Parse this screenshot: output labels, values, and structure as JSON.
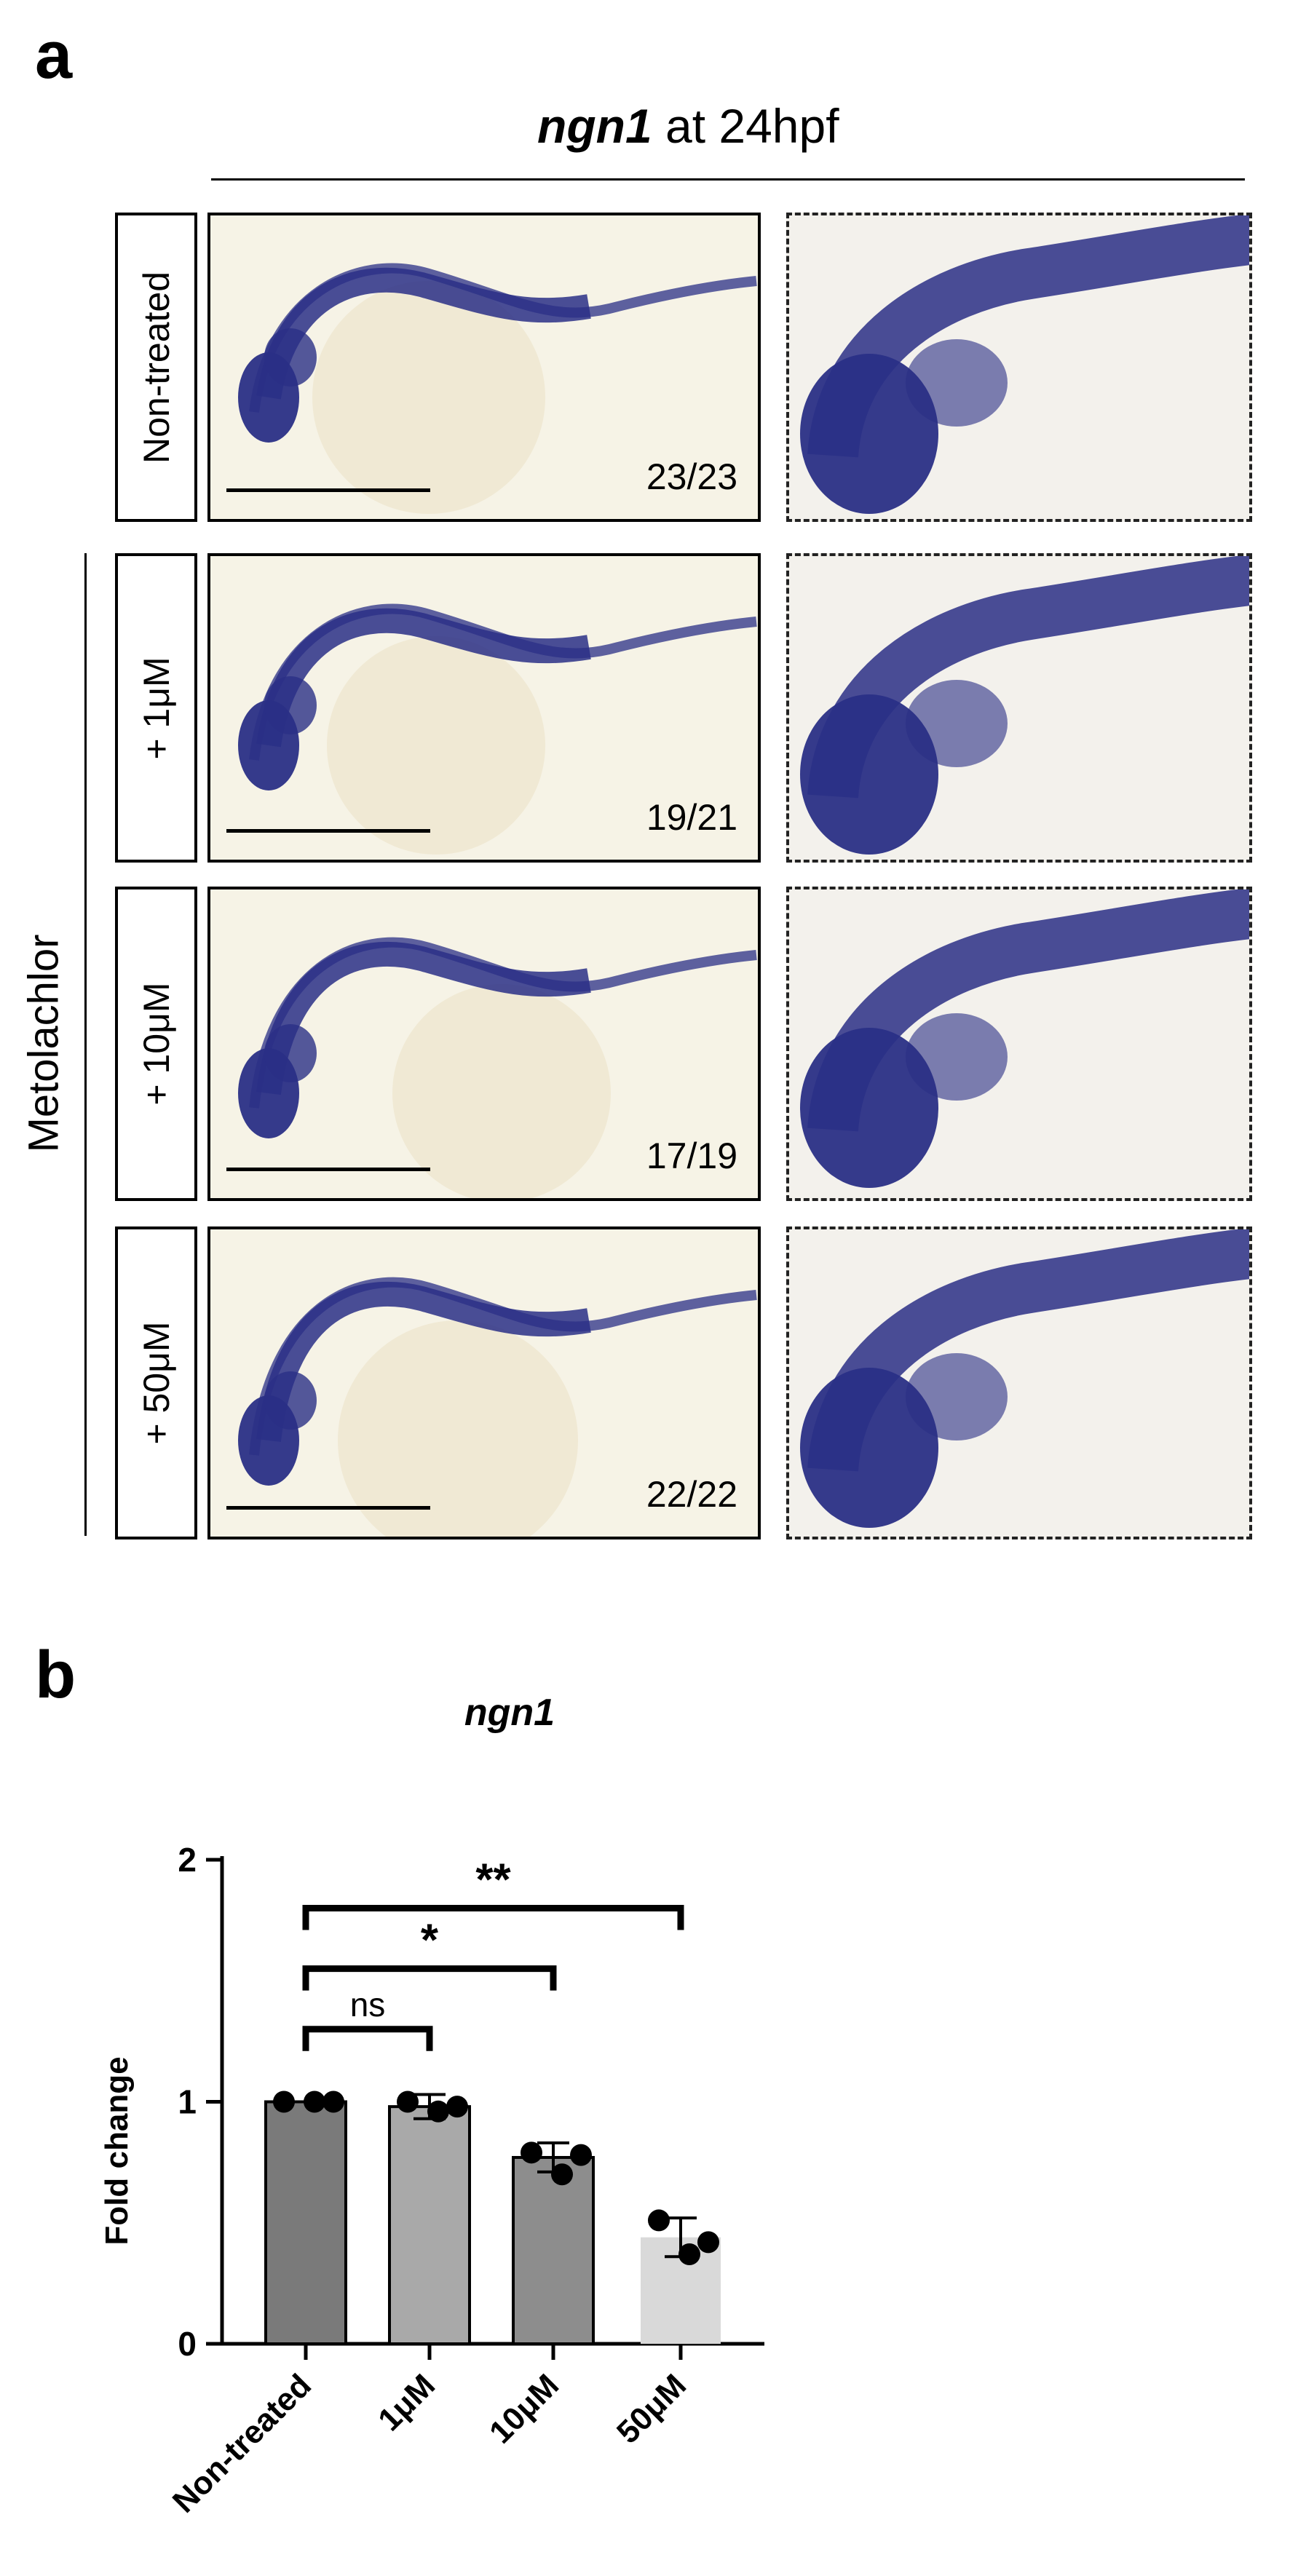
{
  "panel_a": {
    "letter": "a",
    "gene": "ngn1",
    "title_suffix": "at 24hpf",
    "group_label": "Metolachlor",
    "rows": [
      {
        "label": "Non-treated",
        "count": "23/23"
      },
      {
        "label": "+ 1μM",
        "count": "19/21"
      },
      {
        "label": "+ 10μM",
        "count": "17/19"
      },
      {
        "label": "+ 50μM",
        "count": "22/22"
      }
    ],
    "colors": {
      "stain": "#2a2f86",
      "yolk": "#efe8d2",
      "background": "#f6f3e6"
    }
  },
  "panel_b": {
    "letter": "b",
    "significance": [
      {
        "from": "Non-treated",
        "to": "1μM",
        "label": "ns"
      },
      {
        "from": "Non-treated",
        "to": "10μM",
        "label": "*"
      },
      {
        "from": "Non-treated",
        "to": "50μM",
        "label": "**"
      }
    ]
  },
  "chart_data": {
    "type": "bar",
    "title": "ngn1",
    "xlabel": "",
    "ylabel": "Fold change",
    "ylim": [
      0,
      2
    ],
    "yticks": [
      "0",
      "1",
      "2"
    ],
    "categories": [
      "Non-treated",
      "1μM",
      "10μM",
      "50μM"
    ],
    "values": [
      1.0,
      0.98,
      0.77,
      0.44
    ],
    "errors": [
      0.0,
      0.05,
      0.06,
      0.08
    ],
    "points": [
      [
        1.0,
        1.0,
        1.0
      ],
      [
        1.0,
        0.96,
        0.98
      ],
      [
        0.79,
        0.7,
        0.78
      ],
      [
        0.51,
        0.37,
        0.42
      ]
    ],
    "bar_colors": [
      "#7a7a7a",
      "#a9a9a9",
      "#8d8d8d",
      "#d9d9d9"
    ],
    "grid": false
  }
}
